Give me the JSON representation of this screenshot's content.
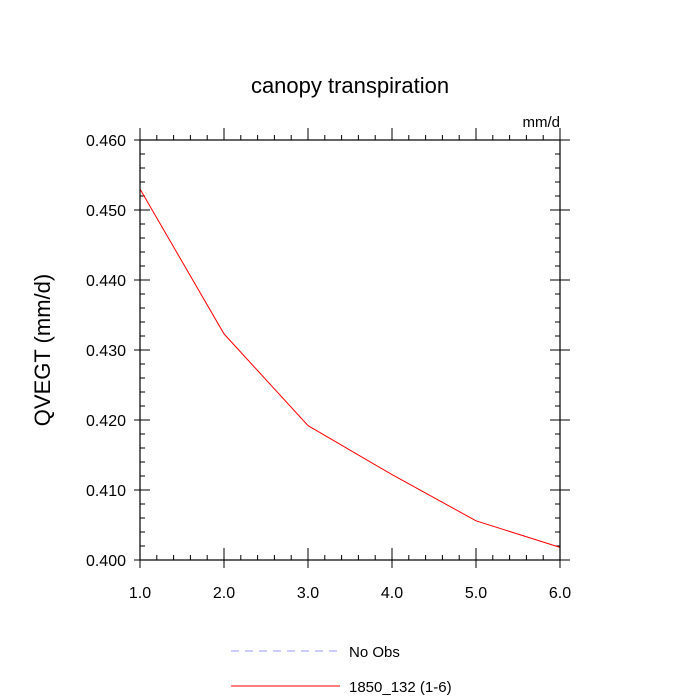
{
  "chart_data": {
    "type": "line",
    "title": "canopy transpiration",
    "units_label": "mm/d",
    "xlabel": "",
    "ylabel": "QVEGT  (mm/d)",
    "xlim": [
      1.0,
      6.0
    ],
    "ylim": [
      0.4,
      0.46
    ],
    "x_ticks": [
      "1.0",
      "2.0",
      "3.0",
      "4.0",
      "5.0",
      "6.0"
    ],
    "y_ticks": [
      "0.400",
      "0.410",
      "0.420",
      "0.430",
      "0.440",
      "0.450",
      "0.460"
    ],
    "series": [
      {
        "name": "1850_132 (1-6)",
        "color": "#ff0000",
        "style": "solid",
        "x": [
          1.0,
          2.0,
          3.0,
          4.0,
          5.0,
          6.0
        ],
        "y": [
          0.453,
          0.4323,
          0.4192,
          0.4122,
          0.4056,
          0.4018
        ]
      }
    ],
    "legend": [
      {
        "label": "No Obs",
        "color": "#9999ff",
        "style": "dashed"
      },
      {
        "label": "1850_132 (1-6)",
        "color": "#ff0000",
        "style": "solid"
      }
    ],
    "legend_position": "bottom",
    "grid": false
  }
}
